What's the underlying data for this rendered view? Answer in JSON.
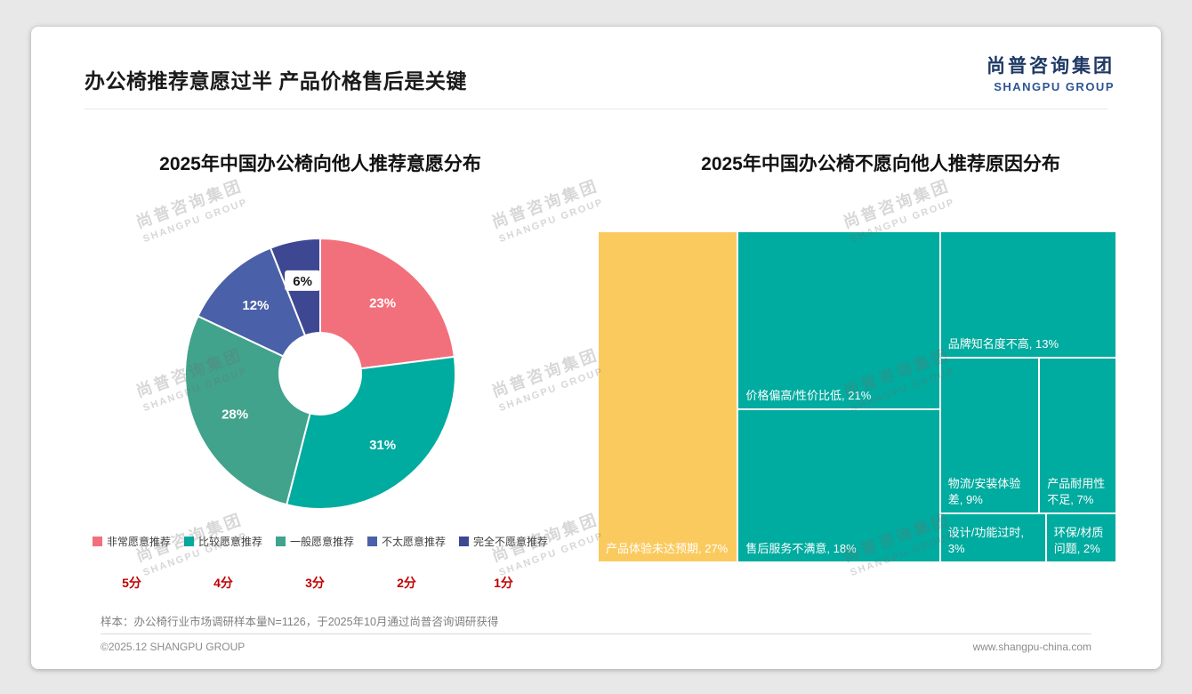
{
  "page": {
    "header_title": "办公椅推荐意愿过半 产品价格售后是关键",
    "logo": {
      "cn": "尚普咨询集团",
      "en": "SHANGPU GROUP"
    },
    "watermark": {
      "cn": "尚普咨询集团",
      "en": "SHANGPU GROUP"
    },
    "footnote": "样本：办公椅行业市场调研样本量N=1126，于2025年10月通过尚普咨询调研获得",
    "footer_left": "©2025.12 SHANGPU GROUP",
    "footer_right": "www.shangpu-china.com"
  },
  "chart_data": [
    {
      "type": "pie",
      "subtype": "donut",
      "title": "2025年中国办公椅向他人推荐意愿分布",
      "legend_position": "bottom",
      "segments": [
        {
          "label": "非常愿意推荐",
          "score": "5分",
          "value": 23,
          "data_label": "23%",
          "color": "#F2707B"
        },
        {
          "label": "比较愿意推荐",
          "score": "4分",
          "value": 31,
          "data_label": "31%",
          "color": "#00AB9F"
        },
        {
          "label": "一般愿意推荐",
          "score": "3分",
          "value": 28,
          "data_label": "28%",
          "color": "#41A38C"
        },
        {
          "label": "不太愿意推荐",
          "score": "2分",
          "value": 12,
          "data_label": "12%",
          "color": "#4A60A8"
        },
        {
          "label": "完全不愿意推荐",
          "score": "1分",
          "value": 6,
          "data_label": "6%",
          "color": "#3E4791",
          "label_on_white": true
        }
      ]
    },
    {
      "type": "treemap",
      "title": "2025年中国办公椅不愿向他人推荐原因分布",
      "columns": [
        {
          "rows": [
            [
              {
                "label": "产品体验未达预期, 27%",
                "value": 27,
                "color": "#FBCA5F"
              }
            ]
          ]
        },
        {
          "rows": [
            [
              {
                "label": "价格偏高/性价比低, 21%",
                "value": 21,
                "color": "#00AB9F"
              }
            ],
            [
              {
                "label": "售后服务不满意, 18%",
                "value": 18,
                "color": "#00AB9F"
              }
            ]
          ]
        },
        {
          "rows": [
            [
              {
                "label": "品牌知名度不高, 13%",
                "value": 13,
                "color": "#00AB9F"
              }
            ],
            [
              {
                "label": "物流/安装体验差, 9%",
                "value": 9,
                "color": "#00AB9F"
              },
              {
                "label": "产品耐用性不足, 7%",
                "value": 7,
                "color": "#00AB9F"
              }
            ],
            [
              {
                "label": "设计/功能过时, 3%",
                "value": 3,
                "color": "#00AB9F"
              },
              {
                "label": "环保/材质问题, 2%",
                "value": 2,
                "color": "#00AB9F"
              }
            ]
          ]
        }
      ]
    }
  ]
}
